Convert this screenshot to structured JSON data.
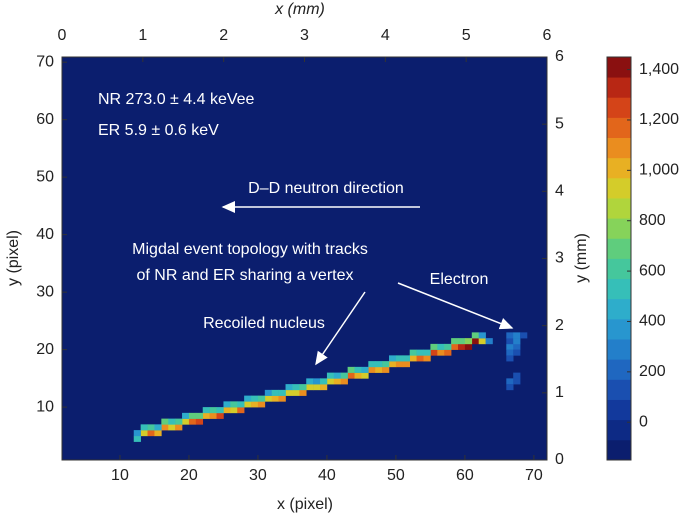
{
  "chart_data": {
    "type": "heatmap",
    "xlabel": "x (pixel)",
    "ylabel": "y (pixel)",
    "x2label": "x (mm)",
    "y2label": "y (mm)",
    "xlim": [
      1.6,
      71.9
    ],
    "ylim": [
      0.8,
      70.9
    ],
    "xticks": [
      10,
      20,
      30,
      40,
      50,
      60,
      70
    ],
    "yticks": [
      10,
      20,
      30,
      40,
      50,
      60,
      70
    ],
    "x2lim": [
      0,
      6
    ],
    "x2ticks": [
      0,
      1,
      2,
      3,
      4,
      5,
      6
    ],
    "y2lim": [
      0,
      6
    ],
    "y2ticks": [
      0,
      1,
      2,
      3,
      4,
      5,
      6
    ],
    "clim": [
      -150,
      1450
    ],
    "cticks": [
      0,
      200,
      400,
      600,
      800,
      {
        "value": 1000,
        "label": "1,000"
      },
      {
        "value": 1200,
        "label": "1,200"
      },
      {
        "value": 1400,
        "label": "1,400"
      }
    ],
    "colormap": [
      "#0b1e6e",
      "#0d2a85",
      "#12399c",
      "#1a4fb0",
      "#1f67c0",
      "#237fca",
      "#2896cf",
      "#2eadcb",
      "#36bfb8",
      "#45c79c",
      "#5fcd7d",
      "#86d35a",
      "#b0d53c",
      "#d4cc2a",
      "#e8b023",
      "#ea8d1f",
      "#e2661b",
      "#d44418",
      "#b82714",
      "#8a1010"
    ],
    "annotations": [
      "NR 273.0 ± 4.4 keVee",
      "ER 5.9 ± 0.6 keV",
      "D–D neutron direction",
      "Migdal event topology with tracks",
      "of NR and ER sharing a vertex",
      "Recoiled nucleus",
      "Electron"
    ],
    "x": [
      12,
      13,
      14,
      15,
      16,
      17,
      18,
      19,
      20,
      21,
      22,
      23,
      24,
      25,
      26,
      27,
      28,
      29,
      30,
      31,
      32,
      33,
      34,
      35,
      36,
      37,
      38,
      39,
      40,
      41,
      42,
      43,
      44,
      45,
      46,
      47,
      48,
      49,
      50,
      51,
      52,
      53,
      54,
      55,
      56,
      57,
      58,
      59,
      60,
      61,
      62,
      12,
      13,
      14,
      15,
      16,
      17,
      18,
      19,
      20,
      21,
      22,
      23,
      24,
      25,
      26,
      27,
      28,
      29,
      30,
      31,
      32,
      33,
      34,
      35,
      36,
      37,
      38,
      39,
      40,
      41,
      42,
      43,
      44,
      45,
      46,
      47,
      48,
      49,
      50,
      51,
      52,
      53,
      54,
      55,
      56,
      57,
      58,
      59,
      60,
      61,
      62,
      66,
      67,
      66,
      67,
      66,
      67,
      68,
      66,
      67,
      66,
      66,
      67,
      66,
      67,
      63
    ],
    "y": [
      4,
      5,
      5,
      5,
      6,
      6,
      6,
      7,
      7,
      7,
      8,
      8,
      8,
      9,
      9,
      9,
      10,
      10,
      10,
      11,
      11,
      11,
      12,
      12,
      12,
      13,
      13,
      13,
      14,
      14,
      14,
      15,
      15,
      15,
      16,
      16,
      16,
      17,
      17,
      17,
      18,
      18,
      18,
      19,
      19,
      19,
      20,
      20,
      20,
      21,
      21,
      5,
      6,
      6,
      6,
      7,
      7,
      7,
      8,
      8,
      8,
      9,
      9,
      9,
      10,
      10,
      10,
      11,
      11,
      11,
      12,
      12,
      12,
      13,
      13,
      13,
      14,
      14,
      14,
      15,
      15,
      15,
      16,
      16,
      16,
      17,
      17,
      17,
      18,
      18,
      18,
      19,
      19,
      19,
      20,
      20,
      20,
      21,
      21,
      21,
      22,
      22,
      20,
      20,
      21,
      21,
      22,
      22,
      22,
      19,
      19,
      18,
      14,
      14,
      13,
      15,
      21
    ],
    "values": [
      500,
      900,
      1150,
      1000,
      1050,
      900,
      1100,
      950,
      1200,
      1250,
      1000,
      1100,
      1250,
      1000,
      950,
      1150,
      900,
      1000,
      1050,
      900,
      1000,
      1100,
      950,
      900,
      1050,
      950,
      900,
      1000,
      950,
      1000,
      1100,
      1200,
      1000,
      950,
      1100,
      1000,
      1050,
      1000,
      1100,
      1050,
      1000,
      1150,
      1100,
      1250,
      1100,
      1150,
      1200,
      1300,
      1450,
      1400,
      900,
      350,
      550,
      600,
      450,
      650,
      500,
      600,
      450,
      700,
      650,
      500,
      600,
      550,
      450,
      600,
      500,
      450,
      550,
      600,
      400,
      500,
      550,
      450,
      500,
      600,
      450,
      400,
      550,
      500,
      450,
      600,
      650,
      500,
      450,
      550,
      500,
      600,
      450,
      550,
      500,
      600,
      550,
      500,
      650,
      550,
      600,
      700,
      650,
      800,
      700,
      400,
      250,
      200,
      150,
      250,
      200,
      300,
      150,
      200,
      100,
      150,
      200,
      150,
      150,
      100,
      250
    ]
  }
}
